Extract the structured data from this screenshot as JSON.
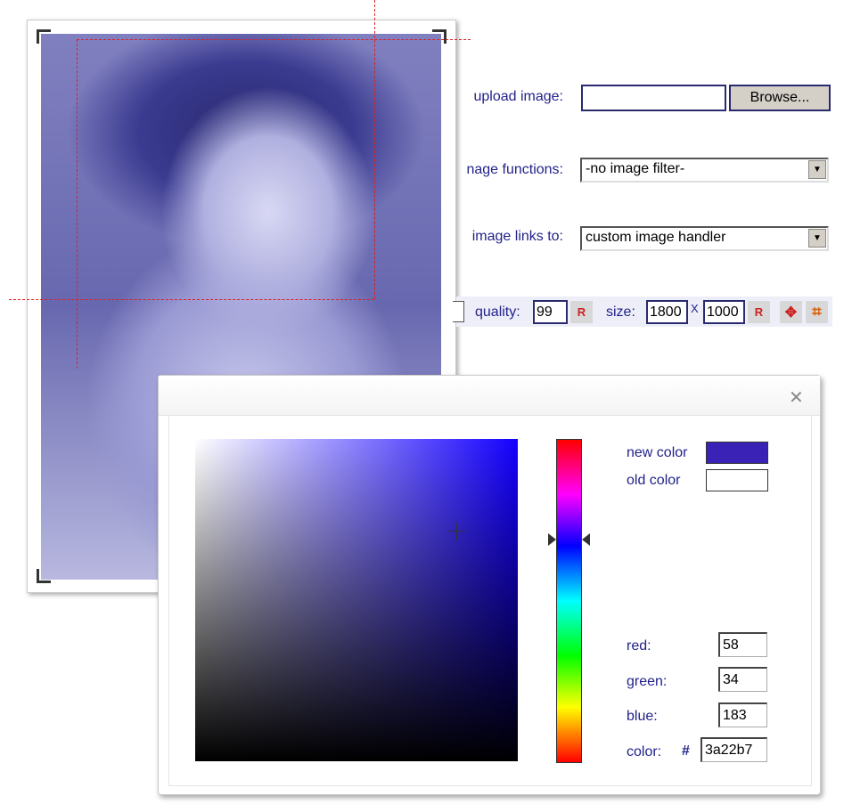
{
  "form": {
    "upload_label": "upload image:",
    "upload_value": "",
    "browse_label": "Browse...",
    "functions_label": "nage functions:",
    "functions_value": "-no image filter-",
    "links_label": "image links to:",
    "links_value": "custom image handler",
    "quality_label": "quality:",
    "quality_value": "99",
    "reset_label": "R",
    "size_label": "size:",
    "width_value": "1800",
    "times": "X",
    "height_value": "1000"
  },
  "color_picker": {
    "new_color_label": "new color",
    "old_color_label": "old color",
    "new_color": "#3a22b7",
    "old_color": "#ffffff",
    "hue_color": "#1400ff",
    "red_label": "red:",
    "red": "58",
    "green_label": "green:",
    "green": "34",
    "blue_label": "blue:",
    "blue": "183",
    "color_label": "color:",
    "hash": "#",
    "hex": "3a22b7"
  },
  "colors": {
    "crop_guide": "#e02020",
    "label": "#22228a",
    "photo_tint": "#4a4aa8"
  }
}
